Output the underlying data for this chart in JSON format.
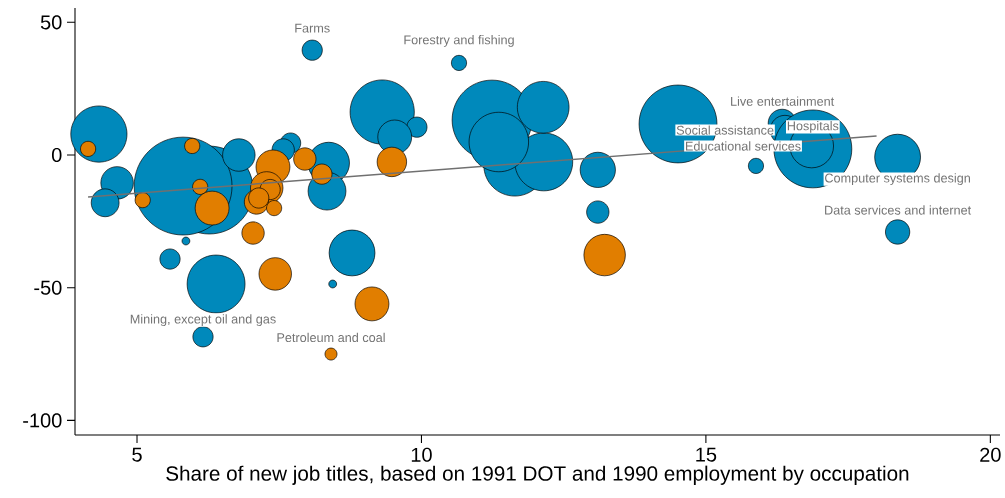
{
  "chart_data": {
    "type": "bubble",
    "xlabel": "Share of new job titles, based on 1991 DOT and 1990 employment by occupation",
    "xlim": [
      3.91,
      20.17
    ],
    "ylim": [
      -105.5,
      55.4
    ],
    "xticks": [
      5,
      10,
      15,
      20
    ],
    "yticks": [
      50,
      0,
      -50,
      -100
    ],
    "series": [
      {
        "color": "#0089bb",
        "x": [
          6.27,
          5.81,
          4.33,
          4.65,
          4.44,
          6.79,
          5.86,
          5.58,
          6.39,
          7.7,
          7.57,
          8.37,
          8.34,
          8.78,
          8.44,
          6.16,
          8.08,
          10.66,
          9.31,
          9.92,
          9.53,
          11.24,
          11.64,
          12.15,
          12.14,
          11.36,
          13.1,
          13.1,
          14.51,
          15.88,
          16.34,
          16.39,
          16.88,
          16.86,
          18.37,
          18.37
        ],
        "values": [
          -13.2,
          -11.7,
          7.9,
          -10.5,
          -18,
          0,
          -32.4,
          -39.2,
          -48.6,
          4.5,
          1.9,
          -3,
          -13.6,
          -36.9,
          -48.6,
          -68.5,
          39.5,
          34.7,
          16.2,
          10.5,
          6.8,
          13.2,
          -3.8,
          -2.6,
          18,
          4.9,
          -5.6,
          -21.5,
          11.7,
          -4.1,
          12,
          9.4,
          2.3,
          3.4,
          -0.8,
          -29
        ],
        "sizes": [
          0.81,
          1,
          0.34,
          0.12,
          0.09,
          0.12,
          0.01,
          0.05,
          0.36,
          0.05,
          0.06,
          0.19,
          0.16,
          0.23,
          0.01,
          0.05,
          0.05,
          0.03,
          0.44,
          0.05,
          0.13,
          0.67,
          0.41,
          0.36,
          0.29,
          0.38,
          0.14,
          0.06,
          0.64,
          0.03,
          0.09,
          0.1,
          0.64,
          0.21,
          0.23,
          0.07
        ]
      },
      {
        "color": "#e17e00",
        "x": [
          4.14,
          5.97,
          5.1,
          6.11,
          6.32,
          7.39,
          7.28,
          7.34,
          7.1,
          7.14,
          7.41,
          7.04,
          7.43,
          7.95,
          8.25,
          8.41,
          9.48,
          13.22,
          9.13
        ],
        "values": [
          2.3,
          3.4,
          -17,
          -12,
          -20,
          -4.5,
          -12.4,
          -13,
          -17.7,
          -16.2,
          -20,
          -29.4,
          -44.8,
          -1.5,
          -7.2,
          -75,
          -2.6,
          -37.7,
          -56.1
        ],
        "sizes": [
          0.03,
          0.03,
          0.03,
          0.03,
          0.13,
          0.13,
          0.12,
          0.05,
          0.07,
          0.05,
          0.03,
          0.06,
          0.12,
          0.06,
          0.05,
          0.02,
          0.1,
          0.19,
          0.13
        ]
      },
      {
        "type": "line",
        "color": "#707070",
        "x": [
          4.14,
          18.0
        ],
        "values": [
          -15.8,
          7.2
        ]
      }
    ],
    "annotations": [
      {
        "text": "Farms",
        "x": 8.08,
        "y": 39.5
      },
      {
        "text": "Forestry and fishing",
        "x": 10.66,
        "y": 34.7
      },
      {
        "text": "Mining, except oil and gas",
        "x": 6.16,
        "y": -68.5
      },
      {
        "text": "Petroleum and coal",
        "x": 8.41,
        "y": -75
      },
      {
        "text": "Live entertainment",
        "x": 16.34,
        "y": 12
      },
      {
        "text": "Social assistance",
        "x": 16.39,
        "y": 9.4
      },
      {
        "text": "Educational services",
        "x": 16.86,
        "y": 3.4
      },
      {
        "text": "Hospitals",
        "x": 16.88,
        "y": 2.3
      },
      {
        "text": "Computer systems design",
        "x": 18.37,
        "y": -0.8
      },
      {
        "text": "Data services and internet",
        "x": 18.37,
        "y": -29
      }
    ]
  }
}
